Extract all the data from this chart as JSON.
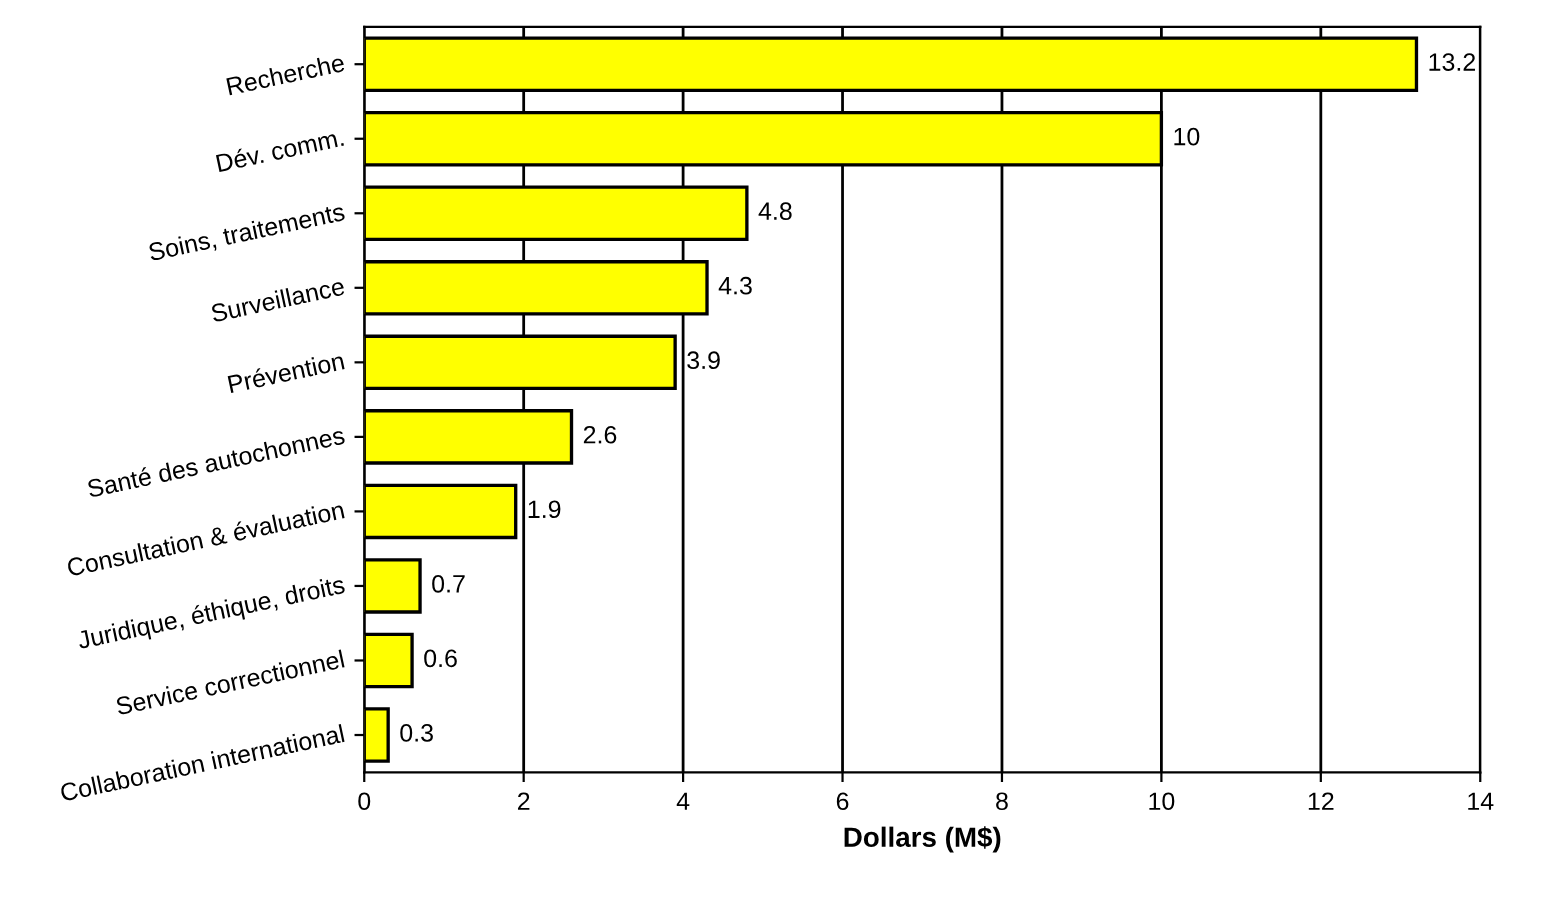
{
  "chart_data": {
    "type": "bar",
    "orientation": "horizontal",
    "xlabel": "Dollars (M$)",
    "categories": [
      "Recherche",
      "Dév. comm.",
      "Soins, traitements",
      "Surveillance",
      "Prévention",
      "Santé des autochonnes",
      "Consultation & évaluation",
      "Juridique, éthique, droits",
      "Service correctionnel",
      "Collaboration international"
    ],
    "values": [
      13.2,
      10,
      4.8,
      4.3,
      3.9,
      2.6,
      1.9,
      0.7,
      0.6,
      0.3
    ],
    "color": "#ffff00",
    "data_labels": true,
    "xlim": [
      0,
      14
    ],
    "xticks": [
      0,
      2,
      4,
      6,
      8,
      10,
      12,
      14
    ],
    "grid": "x",
    "legend": false
  }
}
